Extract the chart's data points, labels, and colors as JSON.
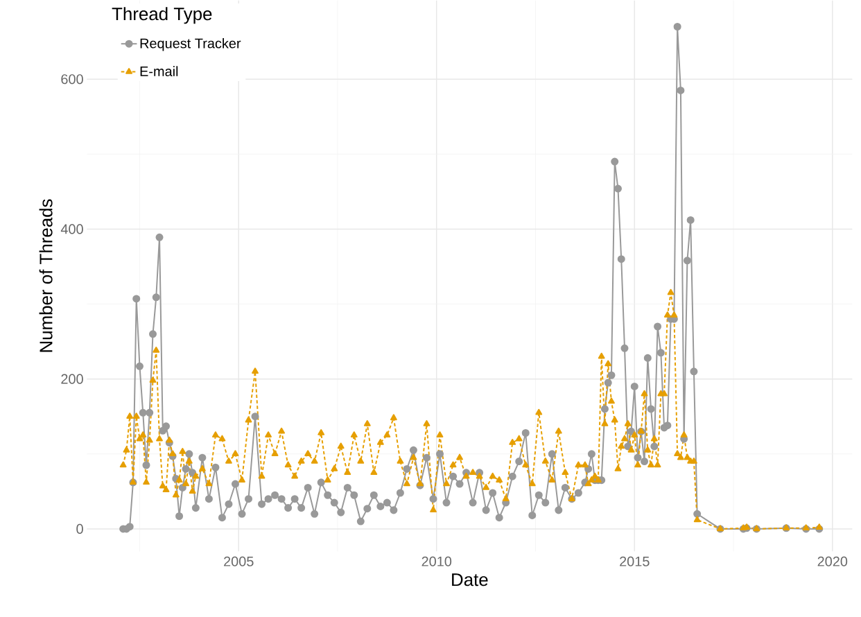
{
  "chart_data": {
    "type": "line",
    "xlabel": "Date",
    "ylabel": "Number of Threads",
    "legend_title": "Thread Type",
    "xlim": [
      "2001-03",
      "2020-07"
    ],
    "xticks": [
      "2005",
      "2010",
      "2015",
      "2020"
    ],
    "ylim": [
      -30,
      705
    ],
    "yticks": [
      0,
      200,
      400,
      600
    ],
    "grid": true,
    "legend": "top left",
    "series": [
      {
        "name": "Request Tracker",
        "color": "#999999",
        "marker": "circle",
        "line_style": "solid",
        "x": [
          "2002-02",
          "2002-03",
          "2002-04",
          "2002-05",
          "2002-06",
          "2002-07",
          "2002-08",
          "2002-09",
          "2002-10",
          "2002-11",
          "2002-12",
          "2003-01",
          "2003-02",
          "2003-03",
          "2003-04",
          "2003-05",
          "2003-06",
          "2003-07",
          "2003-08",
          "2003-09",
          "2003-10",
          "2003-11",
          "2003-12",
          "2004-02",
          "2004-04",
          "2004-06",
          "2004-08",
          "2004-10",
          "2004-12",
          "2005-02",
          "2005-04",
          "2005-06",
          "2005-08",
          "2005-10",
          "2005-12",
          "2006-02",
          "2006-04",
          "2006-06",
          "2006-08",
          "2006-10",
          "2006-12",
          "2007-02",
          "2007-04",
          "2007-06",
          "2007-08",
          "2007-10",
          "2007-12",
          "2008-02",
          "2008-04",
          "2008-06",
          "2008-08",
          "2008-10",
          "2008-12",
          "2009-02",
          "2009-04",
          "2009-06",
          "2009-08",
          "2009-10",
          "2009-12",
          "2010-02",
          "2010-04",
          "2010-06",
          "2010-08",
          "2010-10",
          "2010-12",
          "2011-02",
          "2011-04",
          "2011-06",
          "2011-08",
          "2011-10",
          "2011-12",
          "2012-02",
          "2012-04",
          "2012-06",
          "2012-08",
          "2012-10",
          "2012-12",
          "2013-02",
          "2013-04",
          "2013-06",
          "2013-08",
          "2013-10",
          "2013-11",
          "2013-12",
          "2014-01",
          "2014-02",
          "2014-03",
          "2014-04",
          "2014-05",
          "2014-06",
          "2014-07",
          "2014-08",
          "2014-09",
          "2014-10",
          "2014-11",
          "2014-12",
          "2015-01",
          "2015-02",
          "2015-03",
          "2015-04",
          "2015-05",
          "2015-06",
          "2015-07",
          "2015-08",
          "2015-09",
          "2015-10",
          "2015-11",
          "2015-12",
          "2016-01",
          "2016-02",
          "2016-03",
          "2016-04",
          "2016-05",
          "2016-06",
          "2016-07",
          "2016-08",
          "2017-03",
          "2017-10",
          "2017-11",
          "2018-02",
          "2018-11",
          "2019-05",
          "2019-09"
        ],
        "values": [
          0,
          0,
          3,
          62,
          307,
          217,
          155,
          85,
          155,
          260,
          309,
          389,
          131,
          137,
          115,
          97,
          67,
          17,
          55,
          80,
          100,
          75,
          28,
          95,
          40,
          82,
          15,
          33,
          60,
          20,
          40,
          150,
          33,
          40,
          45,
          40,
          28,
          40,
          28,
          55,
          20,
          62,
          45,
          35,
          22,
          55,
          45,
          10,
          27,
          45,
          30,
          35,
          25,
          48,
          80,
          105,
          58,
          95,
          40,
          100,
          35,
          70,
          60,
          75,
          35,
          75,
          25,
          48,
          15,
          35,
          70,
          90,
          128,
          18,
          45,
          35,
          100,
          25,
          55,
          40,
          48,
          62,
          80,
          100,
          65,
          65,
          65,
          160,
          195,
          205,
          490,
          454,
          360,
          241,
          110,
          130,
          190,
          95,
          130,
          90,
          228,
          160,
          110,
          270,
          235,
          135,
          138,
          280,
          280,
          670,
          585,
          120,
          358,
          412,
          210,
          20,
          0,
          0,
          1,
          0,
          1,
          0,
          0
        ]
      },
      {
        "name": "E-mail",
        "color": "#E69F00",
        "marker": "triangle",
        "line_style": "dashed",
        "x": [
          "2002-02",
          "2002-03",
          "2002-04",
          "2002-05",
          "2002-06",
          "2002-07",
          "2002-08",
          "2002-09",
          "2002-10",
          "2002-11",
          "2002-12",
          "2003-01",
          "2003-02",
          "2003-03",
          "2003-04",
          "2003-05",
          "2003-06",
          "2003-07",
          "2003-08",
          "2003-09",
          "2003-10",
          "2003-11",
          "2003-12",
          "2004-02",
          "2004-04",
          "2004-06",
          "2004-08",
          "2004-10",
          "2004-12",
          "2005-02",
          "2005-04",
          "2005-06",
          "2005-08",
          "2005-10",
          "2005-12",
          "2006-02",
          "2006-04",
          "2006-06",
          "2006-08",
          "2006-10",
          "2006-12",
          "2007-02",
          "2007-04",
          "2007-06",
          "2007-08",
          "2007-10",
          "2007-12",
          "2008-02",
          "2008-04",
          "2008-06",
          "2008-08",
          "2008-10",
          "2008-12",
          "2009-02",
          "2009-04",
          "2009-06",
          "2009-08",
          "2009-10",
          "2009-12",
          "2010-02",
          "2010-04",
          "2010-06",
          "2010-08",
          "2010-10",
          "2010-12",
          "2011-02",
          "2011-04",
          "2011-06",
          "2011-08",
          "2011-10",
          "2011-12",
          "2012-02",
          "2012-04",
          "2012-06",
          "2012-08",
          "2012-10",
          "2012-12",
          "2013-02",
          "2013-04",
          "2013-06",
          "2013-08",
          "2013-10",
          "2013-11",
          "2013-12",
          "2014-01",
          "2014-02",
          "2014-03",
          "2014-04",
          "2014-05",
          "2014-06",
          "2014-07",
          "2014-08",
          "2014-09",
          "2014-10",
          "2014-11",
          "2014-12",
          "2015-01",
          "2015-02",
          "2015-03",
          "2015-04",
          "2015-05",
          "2015-06",
          "2015-07",
          "2015-08",
          "2015-09",
          "2015-10",
          "2015-11",
          "2015-12",
          "2016-01",
          "2016-02",
          "2016-03",
          "2016-04",
          "2016-05",
          "2016-06",
          "2016-07",
          "2016-08",
          "2017-03",
          "2017-10",
          "2017-11",
          "2018-02",
          "2018-11",
          "2019-05",
          "2019-09"
        ],
        "values": [
          85,
          105,
          150,
          62,
          150,
          120,
          125,
          62,
          118,
          198,
          238,
          120,
          57,
          52,
          118,
          100,
          45,
          65,
          103,
          60,
          90,
          50,
          70,
          80,
          60,
          125,
          120,
          90,
          100,
          65,
          145,
          210,
          70,
          125,
          100,
          130,
          85,
          70,
          90,
          100,
          90,
          128,
          65,
          80,
          110,
          75,
          125,
          90,
          140,
          75,
          115,
          125,
          148,
          90,
          60,
          95,
          60,
          140,
          25,
          125,
          60,
          85,
          95,
          70,
          75,
          70,
          55,
          70,
          65,
          40,
          115,
          120,
          85,
          60,
          155,
          90,
          65,
          130,
          75,
          40,
          85,
          85,
          60,
          65,
          70,
          65,
          230,
          140,
          220,
          170,
          145,
          80,
          110,
          120,
          140,
          105,
          125,
          85,
          130,
          180,
          105,
          85,
          120,
          85,
          180,
          180,
          285,
          315,
          285,
          100,
          95,
          125,
          95,
          90,
          90,
          12,
          0,
          1,
          2,
          0,
          1,
          1,
          2
        ]
      }
    ]
  }
}
